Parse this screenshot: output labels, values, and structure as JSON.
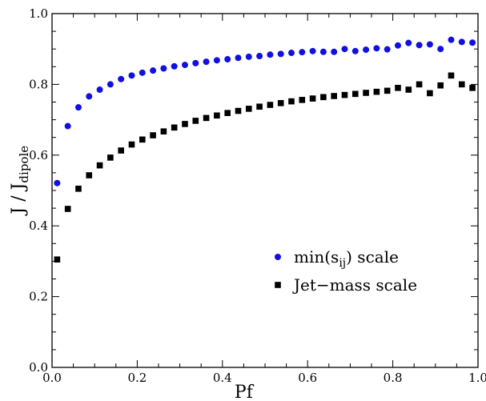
{
  "chart_data": {
    "type": "scatter",
    "title": "",
    "xlabel": "Pf",
    "ylabel": {
      "main": "J / J",
      "sub": "dipole"
    },
    "xlim": [
      0,
      1
    ],
    "ylim": [
      0,
      1
    ],
    "x_ticks": [
      0.0,
      0.2,
      0.4,
      0.6,
      0.8,
      1.0
    ],
    "x_tick_labels": [
      "0.0",
      "0.2",
      "0.4",
      "0.6",
      "0.8",
      "1.0"
    ],
    "y_ticks": [
      0.0,
      0.2,
      0.4,
      0.6,
      0.8,
      1.0
    ],
    "y_tick_labels": [
      "0.0",
      "0.2",
      "0.4",
      "0.6",
      "0.8",
      "1.0"
    ],
    "grid": false,
    "legend_position": "bottom-right",
    "series": [
      {
        "name": {
          "main": "min(s",
          "sub": "ij",
          "suffix": ") scale"
        },
        "marker": "circle",
        "color": "#1010e0",
        "x": [
          0.012,
          0.037,
          0.062,
          0.087,
          0.112,
          0.137,
          0.162,
          0.187,
          0.212,
          0.237,
          0.262,
          0.287,
          0.312,
          0.337,
          0.362,
          0.387,
          0.412,
          0.437,
          0.462,
          0.487,
          0.512,
          0.537,
          0.562,
          0.587,
          0.612,
          0.637,
          0.662,
          0.687,
          0.712,
          0.737,
          0.762,
          0.787,
          0.812,
          0.837,
          0.862,
          0.887,
          0.912,
          0.937,
          0.962,
          0.987
        ],
        "y": [
          0.521,
          0.682,
          0.735,
          0.766,
          0.785,
          0.8,
          0.815,
          0.825,
          0.833,
          0.839,
          0.845,
          0.851,
          0.855,
          0.86,
          0.864,
          0.868,
          0.871,
          0.875,
          0.878,
          0.88,
          0.884,
          0.886,
          0.889,
          0.891,
          0.894,
          0.892,
          0.892,
          0.9,
          0.894,
          0.898,
          0.902,
          0.899,
          0.91,
          0.917,
          0.911,
          0.913,
          0.9,
          0.926,
          0.92,
          0.918
        ]
      },
      {
        "name": "Jet−mass scale",
        "marker": "square",
        "color": "#000000",
        "x": [
          0.012,
          0.037,
          0.062,
          0.087,
          0.112,
          0.137,
          0.162,
          0.187,
          0.212,
          0.237,
          0.262,
          0.287,
          0.312,
          0.337,
          0.362,
          0.387,
          0.412,
          0.437,
          0.462,
          0.487,
          0.512,
          0.537,
          0.562,
          0.587,
          0.612,
          0.637,
          0.662,
          0.687,
          0.712,
          0.737,
          0.762,
          0.787,
          0.812,
          0.837,
          0.862,
          0.887,
          0.912,
          0.937,
          0.962,
          0.987
        ],
        "y": [
          0.305,
          0.448,
          0.505,
          0.543,
          0.571,
          0.593,
          0.613,
          0.63,
          0.644,
          0.656,
          0.667,
          0.678,
          0.688,
          0.697,
          0.705,
          0.712,
          0.719,
          0.725,
          0.731,
          0.737,
          0.742,
          0.747,
          0.752,
          0.756,
          0.76,
          0.764,
          0.767,
          0.77,
          0.773,
          0.776,
          0.779,
          0.782,
          0.79,
          0.785,
          0.8,
          0.775,
          0.797,
          0.825,
          0.8,
          0.79
        ]
      }
    ]
  }
}
